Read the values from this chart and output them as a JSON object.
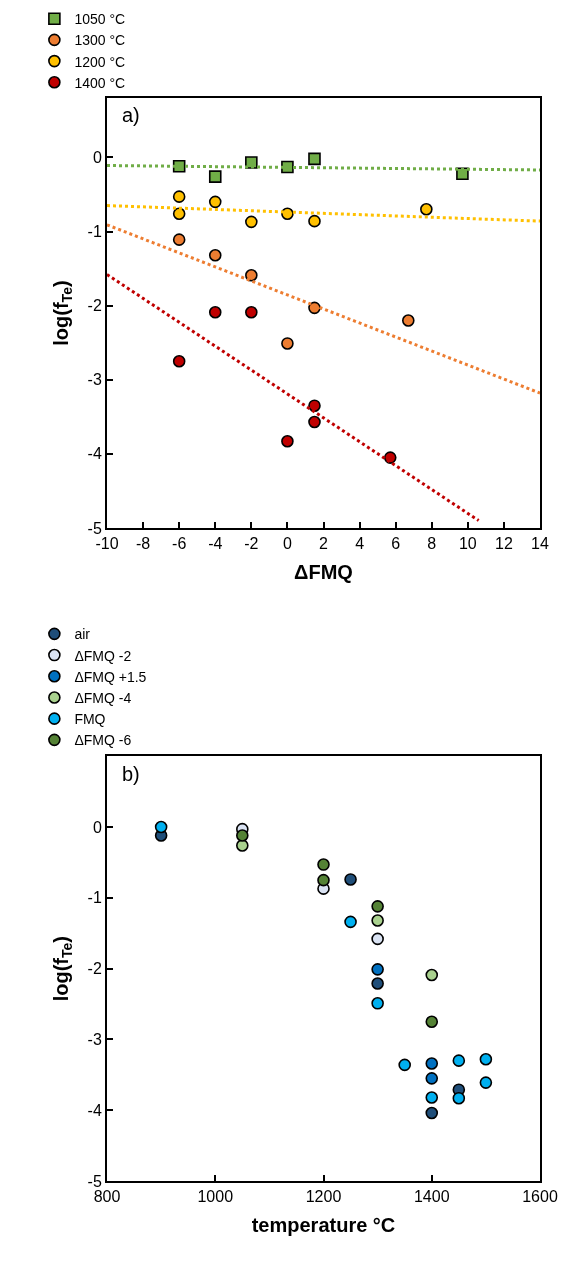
{
  "chart_data": [
    {
      "type": "scatter",
      "title": "a)",
      "xlabel": "ΔFMQ",
      "ylabel": "log(f$_{Te}$)",
      "xlim": [
        -10,
        14
      ],
      "xticks": [
        -10,
        -8,
        -6,
        -4,
        -2,
        0,
        2,
        4,
        6,
        8,
        10,
        12,
        14
      ],
      "ylim": [
        -5,
        0.8
      ],
      "yticks": [
        -5,
        -4,
        -3,
        -2,
        -1,
        0
      ],
      "grid": false,
      "legend": "top",
      "marker": "circle",
      "series": [
        {
          "name": "1050 °C",
          "color": "#70ad47",
          "marker": "square",
          "x": [
            -6,
            -4,
            -2,
            0,
            1.5,
            9.7
          ],
          "values": [
            -0.12,
            -0.26,
            -0.07,
            -0.13,
            -0.02,
            -0.22
          ]
        },
        {
          "name": "1300 °C",
          "color": "#ed7d31",
          "x": [
            -6,
            -4,
            -2,
            0,
            1.5,
            6.7
          ],
          "values": [
            -1.11,
            -1.32,
            -1.59,
            -2.51,
            -2.03,
            -2.2
          ]
        },
        {
          "name": "1200 °C",
          "color": "#ffc000",
          "x": [
            -6,
            -6,
            -4,
            -2,
            0,
            1.5,
            7.7
          ],
          "values": [
            -0.53,
            -0.76,
            -0.6,
            -0.87,
            -0.76,
            -0.86,
            -0.7
          ]
        },
        {
          "name": "1400 °C",
          "color": "#c00000",
          "x": [
            -6,
            -4,
            -2,
            0,
            1.5,
            1.5,
            5.7
          ],
          "values": [
            -2.75,
            -2.09,
            -2.09,
            -3.83,
            -3.35,
            -3.57,
            -4.05
          ]
        },
        {
          "type": "line",
          "line_style": "dotted",
          "color": "#70ad47",
          "marker": "none",
          "x": [
            -10,
            14
          ],
          "values": [
            -0.11,
            -0.17
          ]
        },
        {
          "type": "line",
          "line_style": "dotted",
          "color": "#ffc000",
          "marker": "none",
          "x": [
            -10,
            14
          ],
          "values": [
            -0.65,
            -0.86
          ]
        },
        {
          "type": "line",
          "line_style": "dotted",
          "color": "#ed7d31",
          "marker": "none",
          "x": [
            -10,
            14
          ],
          "values": [
            -0.91,
            -3.18
          ]
        },
        {
          "type": "line",
          "line_style": "dotted",
          "color": "#c00000",
          "marker": "none",
          "x": [
            -10,
            10.6
          ],
          "values": [
            -1.58,
            -4.9
          ]
        }
      ]
    },
    {
      "type": "scatter",
      "title": "b)",
      "xlabel": "temperature °C",
      "ylabel": "log(f$_{Te}$)",
      "xlim": [
        800,
        1600
      ],
      "xticks": [
        800,
        1000,
        1200,
        1400,
        1600
      ],
      "ylim": [
        -5,
        1
      ],
      "yticks": [
        -5,
        -4,
        -3,
        -2,
        -1,
        0
      ],
      "grid": false,
      "legend": "top",
      "marker": "circle",
      "series": [
        {
          "name": "air",
          "color": "#1f4e79",
          "x": [
            900,
            1250,
            1300,
            1400,
            1450
          ],
          "values": [
            -0.12,
            -0.74,
            -2.21,
            -4.04,
            -3.71
          ]
        },
        {
          "name": "ΔFMQ -2",
          "color": "#dae3f3",
          "x": [
            1050,
            1200,
            1300
          ],
          "values": [
            -0.03,
            -0.87,
            -1.58
          ]
        },
        {
          "name": "ΔFMQ +1.5",
          "color": "#0070c0",
          "x": [
            1300,
            1400,
            1400
          ],
          "values": [
            -2.01,
            -3.34,
            -3.55
          ]
        },
        {
          "name": "ΔFMQ -4",
          "color": "#a9d18e",
          "x": [
            1050,
            1200,
            1300,
            1400
          ],
          "values": [
            -0.26,
            null,
            -1.32,
            -2.09
          ]
        },
        {
          "name": "FMQ",
          "color": "#00b0f0",
          "x": [
            900,
            1250,
            1300,
            1350,
            1400,
            1450,
            1450,
            1500,
            1500
          ],
          "values": [
            0,
            -1.34,
            -2.49,
            -3.36,
            -3.82,
            -3.3,
            -3.83,
            -3.28,
            -3.61
          ]
        },
        {
          "name": "ΔFMQ -6",
          "color": "#548235",
          "x": [
            1050,
            1200,
            1200,
            1300,
            1400
          ],
          "values": [
            -0.12,
            -0.53,
            -0.75,
            -1.12,
            -2.75
          ]
        }
      ]
    }
  ]
}
